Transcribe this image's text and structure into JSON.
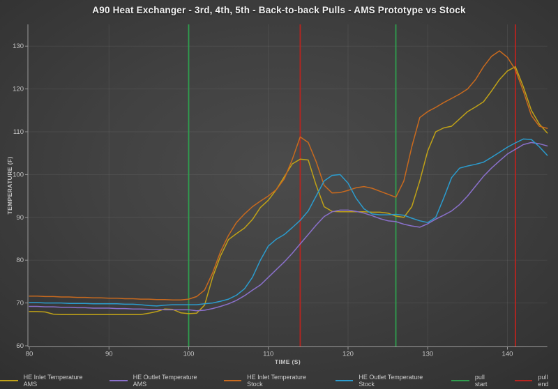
{
  "title": "A90 Heat Exchanger - 3rd, 4th, 5th - Back-to-back Pulls - AMS Prototype vs Stock",
  "chart_data": {
    "type": "line",
    "title": "A90 Heat Exchanger - 3rd, 4th, 5th - Back-to-back Pulls - AMS Prototype vs Stock",
    "xlabel": "TIME (S)",
    "ylabel": "TEMPERATURE (F)",
    "xlim": [
      80,
      145
    ],
    "ylim": [
      60,
      135
    ],
    "x_ticks": [
      80,
      90,
      100,
      110,
      120,
      130,
      140
    ],
    "y_ticks": [
      60,
      70,
      80,
      90,
      100,
      110,
      120,
      130
    ],
    "grid": true,
    "legend_position": "bottom",
    "x": [
      80,
      81,
      82,
      83,
      84,
      85,
      86,
      87,
      88,
      89,
      90,
      91,
      92,
      93,
      94,
      95,
      96,
      97,
      98,
      99,
      100,
      101,
      102,
      103,
      104,
      105,
      106,
      107,
      108,
      109,
      110,
      111,
      112,
      113,
      114,
      115,
      116,
      117,
      118,
      119,
      120,
      121,
      122,
      123,
      124,
      125,
      126,
      127,
      128,
      129,
      130,
      131,
      132,
      133,
      134,
      135,
      136,
      137,
      138,
      139,
      140,
      141,
      142,
      143,
      144,
      145
    ],
    "series": [
      {
        "name": "HE Inlet Temperature AMS",
        "color": "#c0a217",
        "values": [
          68.0,
          68.0,
          67.9,
          67.4,
          67.3,
          67.3,
          67.3,
          67.3,
          67.3,
          67.3,
          67.3,
          67.3,
          67.3,
          67.3,
          67.3,
          67.6,
          68.0,
          68.6,
          68.5,
          67.7,
          67.5,
          67.6,
          69.5,
          76.0,
          81.0,
          84.8,
          86.2,
          87.5,
          89.5,
          92.3,
          94.0,
          96.5,
          99.5,
          102.5,
          103.6,
          103.4,
          97.5,
          92.5,
          91.4,
          91.3,
          91.3,
          91.3,
          91.3,
          91.2,
          91.2,
          91.0,
          90.3,
          90.0,
          92.5,
          98.5,
          105.5,
          110.0,
          110.9,
          111.3,
          113.0,
          114.7,
          115.8,
          117.0,
          119.5,
          122.2,
          124.2,
          125.2,
          120.5,
          115.0,
          111.8,
          109.7
        ]
      },
      {
        "name": "HE Outlet Temperature AMS",
        "color": "#8a70cb",
        "values": [
          69.2,
          69.2,
          69.1,
          69.1,
          69.0,
          69.0,
          68.9,
          68.9,
          68.8,
          68.8,
          68.8,
          68.7,
          68.7,
          68.6,
          68.6,
          68.5,
          68.5,
          68.4,
          68.4,
          68.4,
          68.4,
          68.2,
          68.3,
          68.7,
          69.2,
          69.8,
          70.6,
          71.7,
          73.0,
          74.2,
          76.0,
          77.8,
          79.6,
          81.6,
          83.8,
          86.0,
          88.2,
          90.2,
          91.3,
          91.7,
          91.7,
          91.4,
          91.0,
          90.4,
          89.7,
          89.2,
          89.0,
          88.4,
          88.0,
          87.7,
          88.5,
          89.6,
          90.5,
          91.5,
          93.0,
          95.0,
          97.3,
          99.6,
          101.5,
          103.2,
          104.8,
          105.9,
          107.0,
          107.5,
          107.2,
          106.7
        ]
      },
      {
        "name": "HE Inlet Temperature Stock",
        "color": "#c96a1e",
        "values": [
          71.6,
          71.6,
          71.5,
          71.5,
          71.4,
          71.4,
          71.3,
          71.3,
          71.2,
          71.2,
          71.1,
          71.1,
          71.0,
          71.0,
          70.9,
          70.9,
          70.8,
          70.8,
          70.7,
          70.7,
          70.9,
          71.5,
          73.0,
          77.0,
          82.0,
          85.8,
          88.8,
          90.8,
          92.5,
          93.8,
          95.0,
          96.5,
          99.0,
          103.5,
          108.8,
          107.5,
          103.0,
          97.5,
          95.7,
          95.8,
          96.3,
          96.9,
          97.2,
          96.8,
          96.1,
          95.4,
          94.7,
          98.5,
          106.5,
          113.3,
          114.7,
          115.7,
          116.8,
          117.8,
          118.8,
          120.0,
          122.2,
          125.2,
          127.6,
          128.9,
          127.4,
          124.5,
          119.5,
          113.8,
          111.3,
          110.8
        ]
      },
      {
        "name": "HE Outlet Temperature Stock",
        "color": "#2b9cce",
        "values": [
          70.1,
          70.1,
          70.0,
          70.0,
          70.0,
          69.9,
          69.9,
          69.9,
          69.8,
          69.8,
          69.8,
          69.8,
          69.7,
          69.7,
          69.6,
          69.4,
          69.3,
          69.5,
          69.6,
          69.6,
          69.6,
          69.6,
          69.8,
          70.0,
          70.4,
          70.9,
          71.8,
          73.3,
          76.0,
          80.0,
          83.3,
          84.9,
          86.0,
          87.6,
          89.3,
          91.5,
          95.0,
          98.5,
          99.8,
          100.0,
          98.0,
          94.5,
          92.0,
          90.8,
          90.6,
          90.6,
          90.7,
          90.5,
          89.8,
          89.2,
          88.8,
          90.0,
          94.5,
          99.3,
          101.5,
          102.0,
          102.4,
          102.9,
          104.0,
          105.2,
          106.4,
          107.4,
          108.3,
          108.2,
          106.5,
          104.5
        ]
      }
    ],
    "pull_markers": {
      "start": {
        "label": "pull start",
        "color": "#2f9e4e",
        "times": [
          100,
          126
        ]
      },
      "end": {
        "label": "pull end",
        "color": "#b8241f",
        "times": [
          114,
          141
        ]
      }
    }
  },
  "legend": {
    "items": [
      {
        "label": "HE Inlet Temperature AMS",
        "color": "#c0a217"
      },
      {
        "label": "HE Outlet Temperature AMS",
        "color": "#8a70cb"
      },
      {
        "label": "HE Inlet Temperature Stock",
        "color": "#c96a1e"
      },
      {
        "label": "HE Outlet Temperature Stock",
        "color": "#2b9cce"
      },
      {
        "label": "pull start",
        "color": "#2f9e4e"
      },
      {
        "label": "pull end",
        "color": "#b8241f"
      }
    ]
  }
}
